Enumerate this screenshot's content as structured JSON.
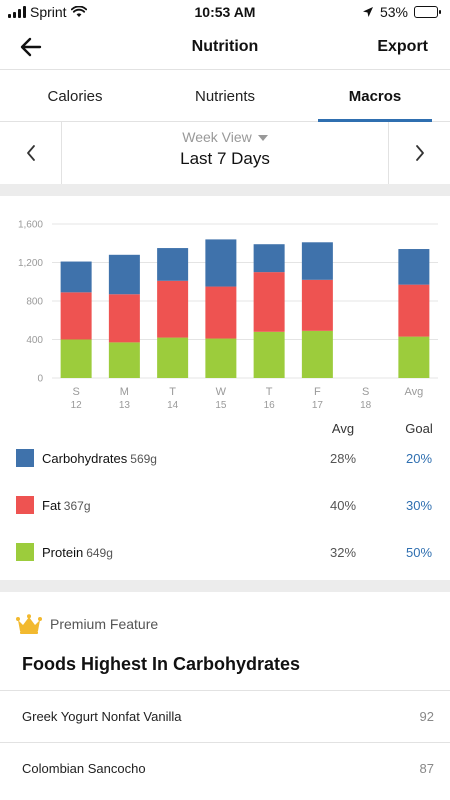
{
  "status_bar": {
    "carrier": "Sprint",
    "time": "10:53 AM",
    "battery": "53%",
    "battery_fraction": 0.53
  },
  "nav": {
    "title": "Nutrition",
    "export_label": "Export"
  },
  "tabs": [
    {
      "label": "Calories",
      "active": false
    },
    {
      "label": "Nutrients",
      "active": false
    },
    {
      "label": "Macros",
      "active": true
    }
  ],
  "date_selector": {
    "view_label": "Week View",
    "range_label": "Last 7 Days"
  },
  "chart_data": {
    "type": "bar",
    "stacked": true,
    "categories": [
      "S",
      "M",
      "T",
      "W",
      "T",
      "F",
      "S",
      "Avg"
    ],
    "category_sublabels": [
      "12",
      "13",
      "14",
      "15",
      "16",
      "17",
      "18",
      ""
    ],
    "ylim": [
      0,
      1600
    ],
    "yticks": [
      0,
      400,
      800,
      1200,
      1600
    ],
    "ytick_labels": [
      "0",
      "400",
      "800",
      "1,200",
      "1,600"
    ],
    "grid": true,
    "series": [
      {
        "name": "Protein",
        "color": "#9ccc3c",
        "values": [
          400,
          370,
          420,
          410,
          480,
          490,
          0,
          430
        ]
      },
      {
        "name": "Fat",
        "color": "#ee5351",
        "values": [
          490,
          500,
          590,
          540,
          620,
          530,
          0,
          540
        ]
      },
      {
        "name": "Carbohydrates",
        "color": "#3f72ab",
        "values": [
          320,
          410,
          340,
          490,
          290,
          390,
          0,
          370
        ]
      }
    ]
  },
  "macros": {
    "avg_header": "Avg",
    "goal_header": "Goal",
    "rows": [
      {
        "name": "Carbohydrates",
        "grams": "569g",
        "avg": "28%",
        "goal": "20%",
        "color": "#3f72ab"
      },
      {
        "name": "Fat",
        "grams": "367g",
        "avg": "40%",
        "goal": "30%",
        "color": "#ee5351"
      },
      {
        "name": "Protein",
        "grams": "649g",
        "avg": "32%",
        "goal": "50%",
        "color": "#9ccc3c"
      }
    ]
  },
  "premium": {
    "badge_label": "Premium Feature",
    "heading": "Foods Highest In Carbohydrates"
  },
  "foods": [
    {
      "name": "Greek Yogurt Nonfat Vanilla",
      "value": "92"
    },
    {
      "name": "Colombian Sancocho",
      "value": "87"
    }
  ],
  "icons": {
    "back": "back-arrow-icon",
    "prev": "chevron-left-icon",
    "next": "chevron-right-icon",
    "crown": "crown-icon",
    "wifi": "wifi-icon",
    "location": "location-arrow-icon"
  }
}
